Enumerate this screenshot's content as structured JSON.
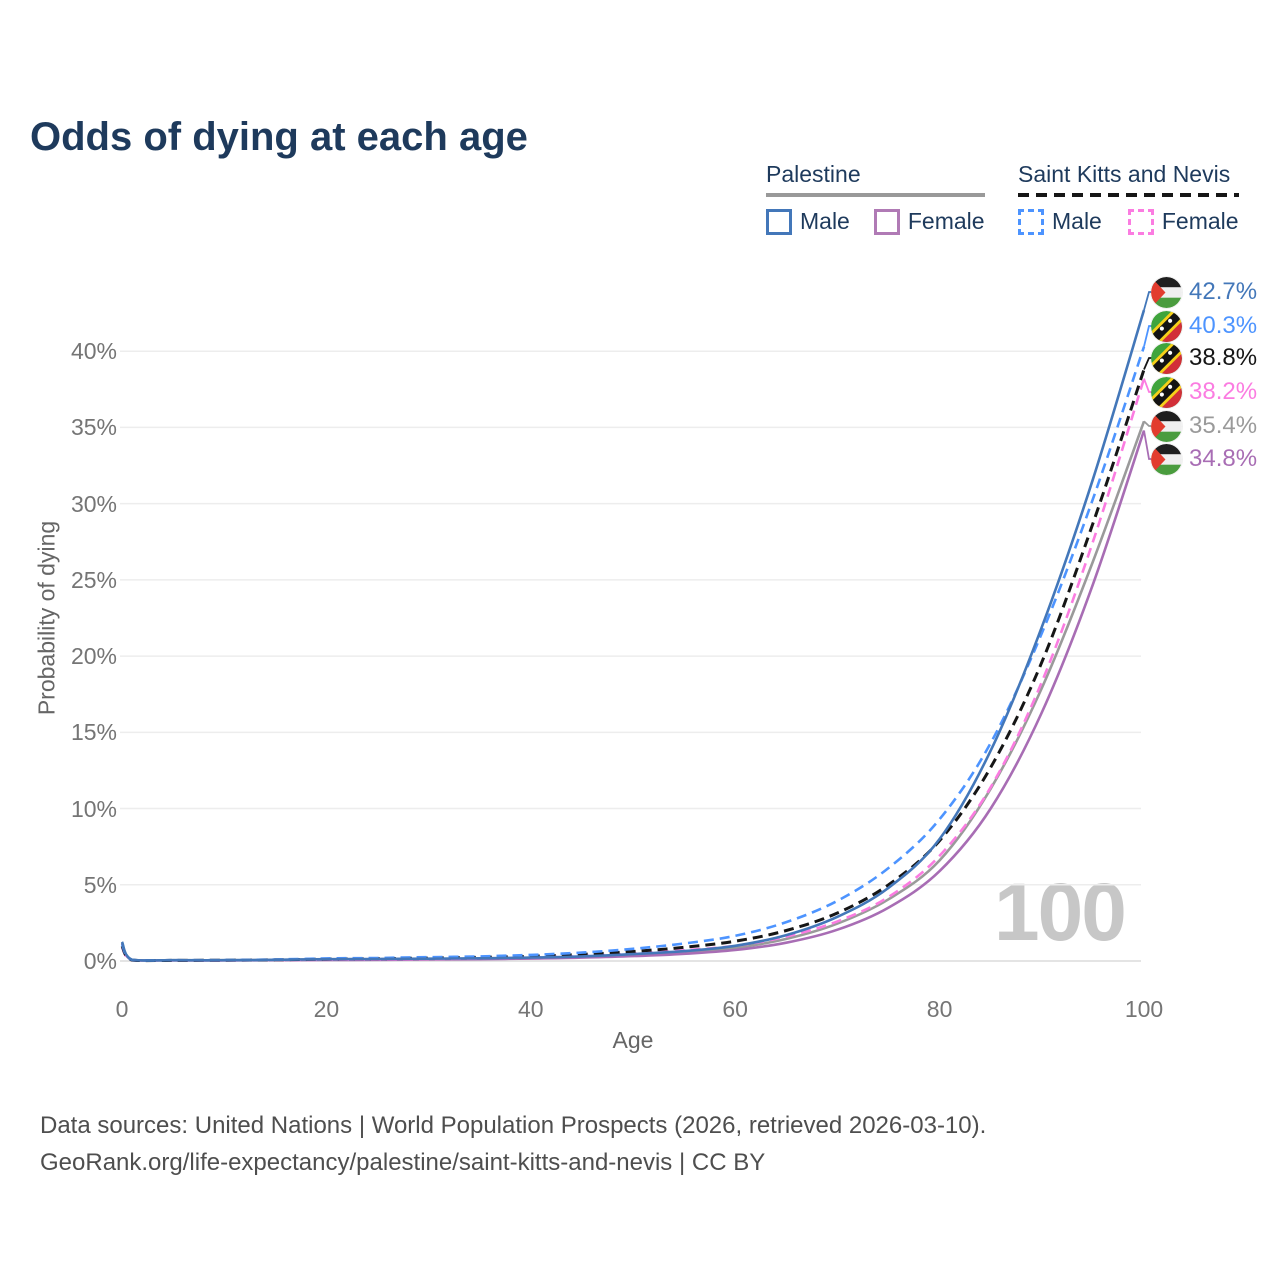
{
  "title": "Odds of dying at each age",
  "legend": {
    "groups": [
      {
        "label": "Palestine",
        "underline_style": "solid",
        "underline_color": "#999999",
        "items": [
          {
            "label": "Male",
            "swatch_color": "#4377b9",
            "swatch_style": "solid"
          },
          {
            "label": "Female",
            "swatch_color": "#b07ab5",
            "swatch_style": "solid"
          }
        ]
      },
      {
        "label": "Saint Kitts and Nevis",
        "underline_style": "dashed",
        "underline_color": "#161616",
        "items": [
          {
            "label": "Male",
            "swatch_color": "#4d94ff",
            "swatch_style": "dashed"
          },
          {
            "label": "Female",
            "swatch_color": "#fb7ce1",
            "swatch_style": "dashed"
          }
        ]
      }
    ]
  },
  "chart_data": {
    "type": "line",
    "title": "Odds of dying at each age",
    "xlabel": "Age",
    "ylabel": "Probability of dying",
    "xlim": [
      0,
      100
    ],
    "ylim_percent": [
      0,
      44
    ],
    "grid": "horizontal",
    "xticks": [
      0,
      20,
      40,
      60,
      80,
      100
    ],
    "yticks_percent": [
      0,
      5,
      10,
      15,
      20,
      25,
      30,
      35,
      40
    ],
    "ytick_labels": [
      "0%",
      "5%",
      "10%",
      "15%",
      "20%",
      "25%",
      "30%",
      "35%",
      "40%"
    ],
    "ages": [
      0,
      1,
      5,
      10,
      15,
      20,
      25,
      30,
      35,
      40,
      45,
      50,
      55,
      60,
      65,
      70,
      75,
      80,
      85,
      90,
      95,
      100
    ],
    "watermark": "100",
    "series": [
      {
        "name": "Palestine — Male",
        "country": "Palestine",
        "sex": "Male",
        "line_style": "solid",
        "color": "#4377b9",
        "flag": "palestine",
        "end_label": "42.7%",
        "label_color": "#4377b9",
        "values_percent": [
          1.25,
          0.08,
          0.05,
          0.05,
          0.08,
          0.12,
          0.13,
          0.15,
          0.18,
          0.22,
          0.3,
          0.45,
          0.65,
          1.0,
          1.7,
          2.9,
          4.8,
          8.0,
          13.8,
          21.9,
          31.6,
          42.7
        ]
      },
      {
        "name": "Saint Kitts and Nevis — Male",
        "country": "Saint Kitts and Nevis",
        "sex": "Male",
        "line_style": "dashed",
        "color": "#4d94ff",
        "flag": "skn",
        "end_label": "40.3%",
        "label_color": "#4d94ff",
        "values_percent": [
          1.1,
          0.07,
          0.05,
          0.06,
          0.1,
          0.17,
          0.2,
          0.25,
          0.3,
          0.4,
          0.55,
          0.8,
          1.15,
          1.65,
          2.55,
          3.95,
          6.1,
          9.3,
          14.3,
          21.5,
          30.3,
          40.3
        ]
      },
      {
        "name": "Saint Kitts and Nevis — All",
        "country": "Saint Kitts and Nevis",
        "sex": "All",
        "line_style": "dashed",
        "color": "#161616",
        "flag": "skn",
        "end_label": "38.8%",
        "label_color": "#161616",
        "values_percent": [
          1.0,
          0.06,
          0.04,
          0.05,
          0.08,
          0.12,
          0.15,
          0.19,
          0.24,
          0.31,
          0.43,
          0.62,
          0.9,
          1.3,
          2.0,
          3.15,
          5.0,
          7.9,
          12.7,
          19.6,
          28.7,
          38.8
        ]
      },
      {
        "name": "Saint Kitts and Nevis — Female",
        "country": "Saint Kitts and Nevis",
        "sex": "Female",
        "line_style": "dashed",
        "color": "#fb7ce1",
        "flag": "skn",
        "end_label": "38.2%",
        "label_color": "#fb7ce1",
        "values_percent": [
          0.9,
          0.05,
          0.04,
          0.04,
          0.06,
          0.08,
          0.1,
          0.13,
          0.17,
          0.23,
          0.33,
          0.48,
          0.7,
          1.0,
          1.6,
          2.6,
          4.2,
          6.9,
          11.4,
          18.3,
          27.5,
          38.2
        ]
      },
      {
        "name": "Palestine — All",
        "country": "Palestine",
        "sex": "All",
        "line_style": "solid",
        "color": "#9a9a9a",
        "flag": "palestine",
        "end_label": "35.4%",
        "label_color": "#9a9a9a",
        "values_percent": [
          1.2,
          0.07,
          0.05,
          0.05,
          0.07,
          0.1,
          0.11,
          0.13,
          0.16,
          0.19,
          0.26,
          0.38,
          0.56,
          0.86,
          1.45,
          2.45,
          4.05,
          6.6,
          11.3,
          17.9,
          26.2,
          35.4
        ]
      },
      {
        "name": "Palestine — Female",
        "country": "Palestine",
        "sex": "Female",
        "line_style": "solid",
        "color": "#a86db4",
        "flag": "palestine",
        "end_label": "34.8%",
        "label_color": "#a86db4",
        "values_percent": [
          1.15,
          0.06,
          0.04,
          0.04,
          0.05,
          0.07,
          0.08,
          0.1,
          0.12,
          0.16,
          0.22,
          0.32,
          0.47,
          0.72,
          1.2,
          2.05,
          3.5,
          5.9,
          10.0,
          16.3,
          24.7,
          34.8
        ]
      }
    ]
  },
  "footer": {
    "line1": "Data sources: United Nations | World Population Prospects (2026, retrieved 2026-03-10).",
    "line2": "GeoRank.org/life-expectancy/palestine/saint-kitts-and-nevis | CC BY"
  }
}
